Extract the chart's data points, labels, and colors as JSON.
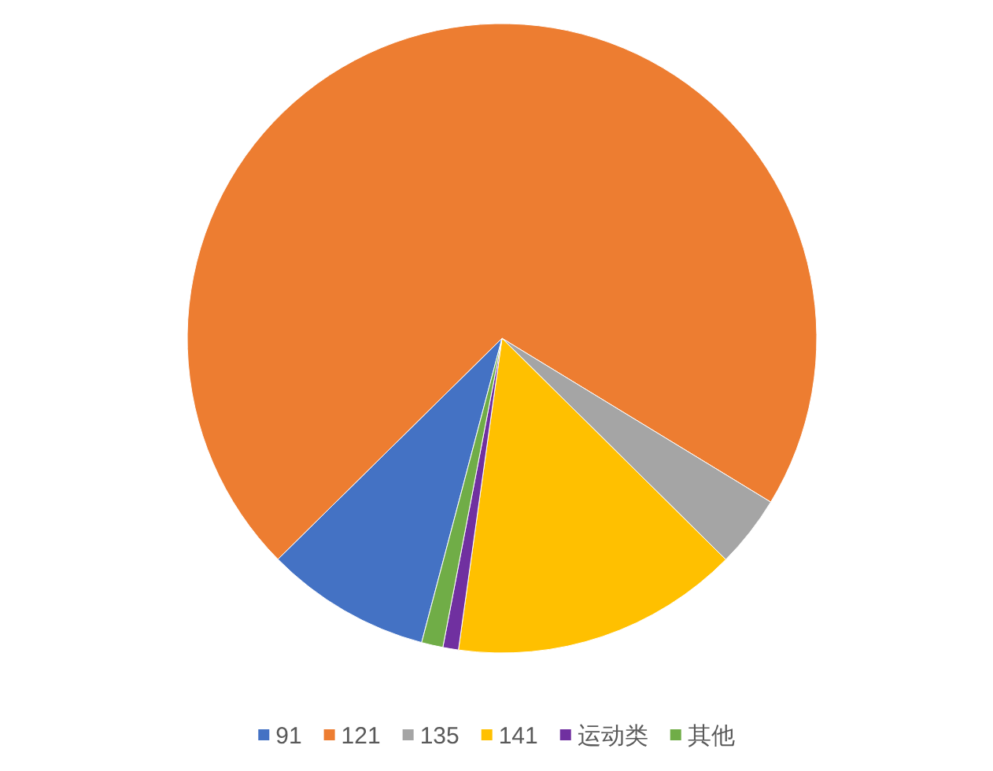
{
  "chart_data": {
    "type": "pie",
    "categories": [
      "91",
      "121",
      "135",
      "141",
      "运动类",
      "其他"
    ],
    "values": [
      8.5,
      71.1,
      3.7,
      14.8,
      0.8,
      1.1
    ],
    "colors": [
      "#4472c4",
      "#ed7d31",
      "#a5a5a5",
      "#ffc000",
      "#7030a0",
      "#70ad47"
    ],
    "legend": "bottom"
  }
}
